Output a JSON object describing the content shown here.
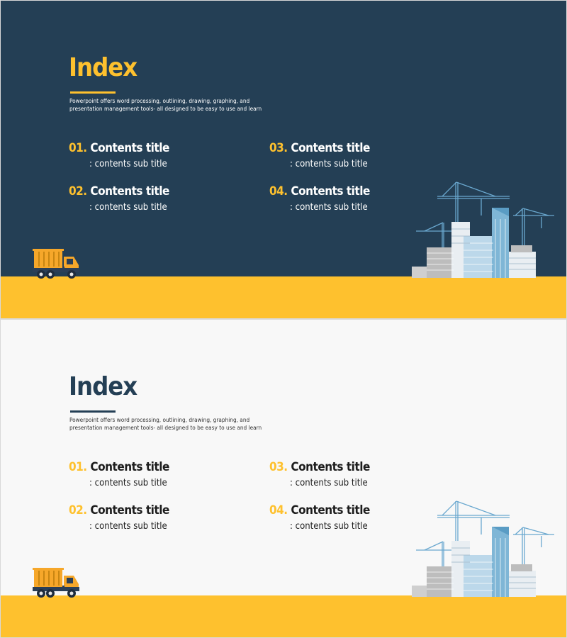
{
  "slides": [
    {
      "theme": "dark",
      "title": "Index",
      "description": "Powerpoint offers word processing, outlining, drawing, graphing, and presentation management tools- all designed to be easy to use and learn",
      "items": [
        {
          "num": "01.",
          "title": "Contents title",
          "sub": ": contents sub title"
        },
        {
          "num": "02.",
          "title": "Contents title",
          "sub": ": contents sub title"
        },
        {
          "num": "03.",
          "title": "Contents title",
          "sub": ": contents sub title"
        },
        {
          "num": "04.",
          "title": "Contents title",
          "sub": ": contents sub title"
        }
      ]
    },
    {
      "theme": "light",
      "title": "Index",
      "description": "Powerpoint offers word processing, outlining, drawing, graphing, and presentation management tools- all designed to be easy to use and learn",
      "items": [
        {
          "num": "01.",
          "title": "Contents title",
          "sub": ": contents sub title"
        },
        {
          "num": "02.",
          "title": "Contents title",
          "sub": ": contents sub title"
        },
        {
          "num": "03.",
          "title": "Contents title",
          "sub": ": contents sub title"
        },
        {
          "num": "04.",
          "title": "Contents title",
          "sub": ": contents sub title"
        }
      ]
    }
  ],
  "colors": {
    "accent": "#fec12e",
    "navy": "#243f55",
    "light_bg": "#f8f8f8",
    "building_blue": "#7fb6d6"
  },
  "icons": [
    "truck-icon",
    "city-skyline-icon",
    "crane-icon"
  ]
}
